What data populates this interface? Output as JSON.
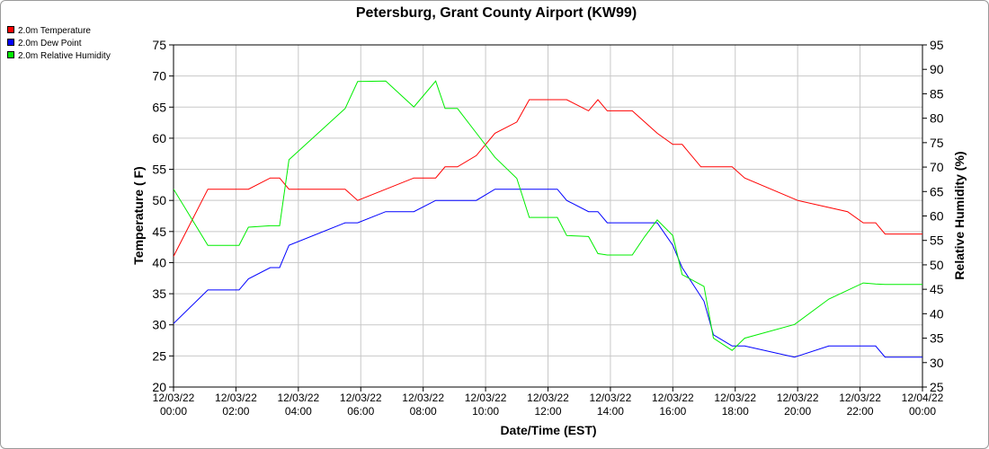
{
  "chart_data": {
    "type": "line",
    "title": "Petersburg, Grant County Airport (KW99)",
    "xlabel": "Date/Time (EST)",
    "ylabel_left": "Temperature ( F)",
    "ylabel_right": "Relative Humidity (%)",
    "ylim_left": [
      20,
      75
    ],
    "ylim_right": [
      25,
      95
    ],
    "yticks_left": [
      20,
      25,
      30,
      35,
      40,
      45,
      50,
      55,
      60,
      65,
      70,
      75
    ],
    "yticks_right": [
      25,
      30,
      35,
      40,
      45,
      50,
      55,
      60,
      65,
      70,
      75,
      80,
      85,
      90,
      95
    ],
    "xlim_hours": [
      0,
      24
    ],
    "xticks": [
      {
        "h": 0,
        "date": "12/03/22",
        "time": "00:00"
      },
      {
        "h": 2,
        "date": "12/03/22",
        "time": "02:00"
      },
      {
        "h": 4,
        "date": "12/03/22",
        "time": "04:00"
      },
      {
        "h": 6,
        "date": "12/03/22",
        "time": "06:00"
      },
      {
        "h": 8,
        "date": "12/03/22",
        "time": "08:00"
      },
      {
        "h": 10,
        "date": "12/03/22",
        "time": "10:00"
      },
      {
        "h": 12,
        "date": "12/03/22",
        "time": "12:00"
      },
      {
        "h": 14,
        "date": "12/03/22",
        "time": "14:00"
      },
      {
        "h": 16,
        "date": "12/03/22",
        "time": "16:00"
      },
      {
        "h": 18,
        "date": "12/03/22",
        "time": "18:00"
      },
      {
        "h": 20,
        "date": "12/03/22",
        "time": "20:00"
      },
      {
        "h": 22,
        "date": "12/03/22",
        "time": "22:00"
      },
      {
        "h": 24,
        "date": "12/04/22",
        "time": "00:00"
      }
    ],
    "grid": true,
    "legend_position": "top-left",
    "series": [
      {
        "name": "2.0m Temperature",
        "color": "#ff0000",
        "axis": "left",
        "points": [
          [
            0,
            41
          ],
          [
            1.1,
            51.8
          ],
          [
            2.4,
            51.8
          ],
          [
            3.1,
            53.6
          ],
          [
            3.4,
            53.6
          ],
          [
            3.7,
            51.8
          ],
          [
            5.5,
            51.8
          ],
          [
            5.9,
            50
          ],
          [
            7.7,
            53.6
          ],
          [
            8.4,
            53.6
          ],
          [
            8.7,
            55.4
          ],
          [
            9.1,
            55.4
          ],
          [
            9.7,
            57.2
          ],
          [
            10.3,
            60.8
          ],
          [
            11,
            62.6
          ],
          [
            11.4,
            66.2
          ],
          [
            12.6,
            66.2
          ],
          [
            13.3,
            64.4
          ],
          [
            13.6,
            66.2
          ],
          [
            13.9,
            64.4
          ],
          [
            14.7,
            64.4
          ],
          [
            15.1,
            62.6
          ],
          [
            15.5,
            60.8
          ],
          [
            16,
            59
          ],
          [
            16.3,
            59
          ],
          [
            16.9,
            55.4
          ],
          [
            17.9,
            55.4
          ],
          [
            18.3,
            53.6
          ],
          [
            20,
            50
          ],
          [
            21.6,
            48.2
          ],
          [
            22.1,
            46.4
          ],
          [
            22.5,
            46.4
          ],
          [
            22.8,
            44.6
          ],
          [
            24,
            44.6
          ],
          [
            24.8,
            42.8
          ]
        ]
      },
      {
        "name": "2.0m Dew Point",
        "color": "#0000ff",
        "axis": "left",
        "points": [
          [
            0,
            30.2
          ],
          [
            1.1,
            35.6
          ],
          [
            2.1,
            35.6
          ],
          [
            2.4,
            37.4
          ],
          [
            3.1,
            39.2
          ],
          [
            3.4,
            39.2
          ],
          [
            3.7,
            42.8
          ],
          [
            5.5,
            46.4
          ],
          [
            5.9,
            46.4
          ],
          [
            6.8,
            48.2
          ],
          [
            7.7,
            48.2
          ],
          [
            8.4,
            50
          ],
          [
            9.7,
            50
          ],
          [
            10.3,
            51.8
          ],
          [
            12.3,
            51.8
          ],
          [
            12.6,
            50
          ],
          [
            13.3,
            48.2
          ],
          [
            13.6,
            48.2
          ],
          [
            13.9,
            46.4
          ],
          [
            15.1,
            46.4
          ],
          [
            15.5,
            46.4
          ],
          [
            16,
            42.8
          ],
          [
            16.3,
            39.2
          ],
          [
            17,
            33.8
          ],
          [
            17.3,
            28.4
          ],
          [
            17.9,
            26.6
          ],
          [
            18.3,
            26.6
          ],
          [
            19.9,
            24.8
          ],
          [
            21,
            26.6
          ],
          [
            22.5,
            26.6
          ],
          [
            22.8,
            24.8
          ],
          [
            24,
            24.8
          ],
          [
            24.8,
            24.8
          ]
        ]
      },
      {
        "name": "2.0m Relative Humidity",
        "color": "#00ee00",
        "axis": "right",
        "points": [
          [
            0,
            65.5
          ],
          [
            1.1,
            54
          ],
          [
            2.1,
            54
          ],
          [
            2.4,
            57.7
          ],
          [
            3.1,
            58
          ],
          [
            3.4,
            58
          ],
          [
            3.7,
            71.5
          ],
          [
            5.5,
            82
          ],
          [
            5.9,
            87.5
          ],
          [
            6.8,
            87.6
          ],
          [
            7.7,
            82.3
          ],
          [
            8.4,
            87.6
          ],
          [
            8.7,
            82
          ],
          [
            9.1,
            82
          ],
          [
            9.7,
            77
          ],
          [
            10.3,
            72
          ],
          [
            11,
            67.7
          ],
          [
            11.4,
            59.7
          ],
          [
            12.3,
            59.7
          ],
          [
            12.6,
            56
          ],
          [
            13.3,
            55.8
          ],
          [
            13.6,
            52.3
          ],
          [
            13.9,
            52
          ],
          [
            14.7,
            52
          ],
          [
            15.1,
            55.8
          ],
          [
            15.5,
            59.2
          ],
          [
            16,
            56
          ],
          [
            16.3,
            48
          ],
          [
            17,
            45.6
          ],
          [
            17.3,
            35
          ],
          [
            17.9,
            32.5
          ],
          [
            18.3,
            35
          ],
          [
            19.9,
            37.8
          ],
          [
            21,
            43
          ],
          [
            22.1,
            46.3
          ],
          [
            22.5,
            46.1
          ],
          [
            22.8,
            46
          ],
          [
            24,
            46
          ],
          [
            24.8,
            49
          ]
        ]
      }
    ]
  }
}
